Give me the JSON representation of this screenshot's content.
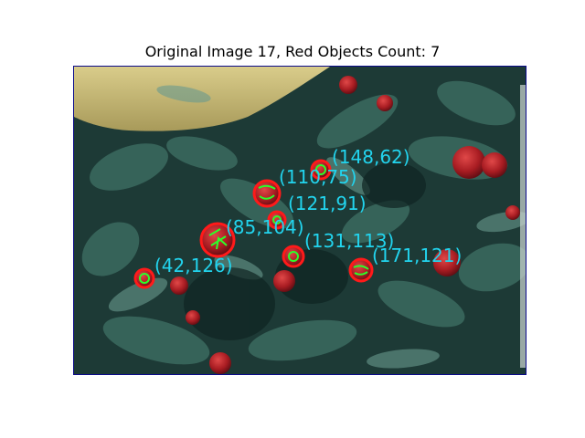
{
  "figure": {
    "title": "Original Image 17, Red Objects Count: 7"
  },
  "colors": {
    "detection_circle": "#ff1a1a",
    "contour": "#2aff2a",
    "label": "#22d4ee",
    "frame": "#0a0a8a"
  },
  "detections": [
    {
      "label": "(148,62)"
    },
    {
      "label": "(110,75)"
    },
    {
      "label": "(121,91)"
    },
    {
      "label": "(85,104)"
    },
    {
      "label": "(131,113)"
    },
    {
      "label": "(171,121)"
    },
    {
      "label": "(42,126)"
    }
  ]
}
